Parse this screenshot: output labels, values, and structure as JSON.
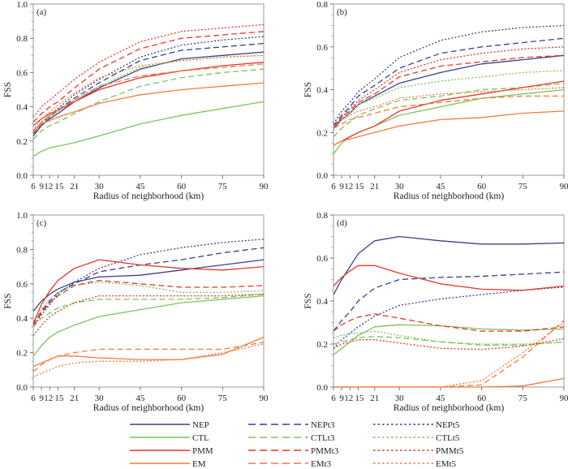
{
  "colors": {
    "NEP": "#3a3f8f",
    "CTL": "#7cc35a",
    "PMM": "#e8372a",
    "EM": "#ef7c3e"
  },
  "legend": {
    "entries": [
      {
        "name": "NEP",
        "color": "NEP",
        "dash": "solid"
      },
      {
        "name": "NEPt3",
        "color": "NEP",
        "dash": "dash"
      },
      {
        "name": "NEPt5",
        "color": "NEP",
        "dash": "dot"
      },
      {
        "name": "CTL",
        "color": "CTL",
        "dash": "solid"
      },
      {
        "name": "CTLt3",
        "color": "CTL",
        "dash": "dash"
      },
      {
        "name": "CTLt5",
        "color": "CTL",
        "dash": "dot"
      },
      {
        "name": "PMM",
        "color": "PMM",
        "dash": "solid"
      },
      {
        "name": "PMMt3",
        "color": "PMM",
        "dash": "dash"
      },
      {
        "name": "PMMt5",
        "color": "PMM",
        "dash": "dot"
      },
      {
        "name": "EM",
        "color": "EM",
        "dash": "solid"
      },
      {
        "name": "EMt3",
        "color": "EM",
        "dash": "dash"
      },
      {
        "name": "EMt5",
        "color": "EM",
        "dash": "dot"
      }
    ]
  },
  "chart_data": [
    {
      "type": "line",
      "panel": "(a)",
      "xlabel": "Radius of neighborhood (km)",
      "ylabel": "FSS",
      "x": [
        6,
        9,
        12,
        15,
        21,
        30,
        45,
        60,
        75,
        90
      ],
      "xticks": [
        "6",
        "9",
        "12",
        "15",
        "21",
        "30",
        "45",
        "60",
        "75",
        "90"
      ],
      "ylim": [
        0,
        1.0
      ],
      "yticks": [
        "0.0",
        "0.2",
        "0.4",
        "0.6",
        "0.8",
        "1.0"
      ],
      "series": [
        {
          "name": "NEP",
          "values": [
            0.23,
            0.29,
            0.33,
            0.36,
            0.43,
            0.51,
            0.62,
            0.68,
            0.7,
            0.72
          ]
        },
        {
          "name": "NEPt3",
          "values": [
            0.24,
            0.3,
            0.34,
            0.38,
            0.45,
            0.54,
            0.67,
            0.73,
            0.75,
            0.77
          ]
        },
        {
          "name": "NEPt5",
          "values": [
            0.25,
            0.31,
            0.35,
            0.39,
            0.47,
            0.56,
            0.69,
            0.76,
            0.79,
            0.81
          ]
        },
        {
          "name": "CTL",
          "values": [
            0.11,
            0.14,
            0.16,
            0.17,
            0.19,
            0.23,
            0.3,
            0.35,
            0.39,
            0.43
          ]
        },
        {
          "name": "CTLt3",
          "values": [
            0.21,
            0.26,
            0.29,
            0.31,
            0.36,
            0.43,
            0.52,
            0.57,
            0.6,
            0.62
          ]
        },
        {
          "name": "CTLt5",
          "values": [
            0.24,
            0.3,
            0.34,
            0.37,
            0.44,
            0.52,
            0.63,
            0.67,
            0.69,
            0.7
          ]
        },
        {
          "name": "PMM",
          "values": [
            0.29,
            0.33,
            0.36,
            0.38,
            0.43,
            0.5,
            0.57,
            0.61,
            0.64,
            0.66
          ]
        },
        {
          "name": "PMMt3",
          "values": [
            0.31,
            0.36,
            0.4,
            0.43,
            0.51,
            0.62,
            0.74,
            0.8,
            0.82,
            0.84
          ]
        },
        {
          "name": "PMMt5",
          "values": [
            0.34,
            0.4,
            0.44,
            0.48,
            0.56,
            0.66,
            0.78,
            0.84,
            0.86,
            0.88
          ]
        },
        {
          "name": "EM",
          "values": [
            0.26,
            0.3,
            0.32,
            0.34,
            0.37,
            0.42,
            0.47,
            0.5,
            0.52,
            0.54
          ]
        },
        {
          "name": "EMt3",
          "values": [
            0.25,
            0.31,
            0.35,
            0.38,
            0.44,
            0.52,
            0.58,
            0.61,
            0.63,
            0.65
          ]
        },
        {
          "name": "EMt5",
          "values": [
            0.26,
            0.33,
            0.37,
            0.41,
            0.48,
            0.57,
            0.64,
            0.67,
            0.69,
            0.7
          ]
        }
      ]
    },
    {
      "type": "line",
      "panel": "(b)",
      "xlabel": "Radius of neighborhood (km)",
      "ylabel": "FSS",
      "x": [
        6,
        9,
        12,
        15,
        21,
        30,
        45,
        60,
        75,
        90
      ],
      "xticks": [
        "6",
        "9",
        "12",
        "15",
        "21",
        "30",
        "45",
        "60",
        "75",
        "90"
      ],
      "ylim": [
        0,
        0.8
      ],
      "yticks": [
        "0.0",
        "0.2",
        "0.4",
        "0.6",
        "0.8"
      ],
      "series": [
        {
          "name": "NEP",
          "values": [
            0.22,
            0.26,
            0.29,
            0.33,
            0.37,
            0.43,
            0.48,
            0.52,
            0.54,
            0.56
          ]
        },
        {
          "name": "NEPt3",
          "values": [
            0.23,
            0.28,
            0.32,
            0.37,
            0.42,
            0.5,
            0.57,
            0.6,
            0.62,
            0.64
          ]
        },
        {
          "name": "NEPt5",
          "values": [
            0.24,
            0.3,
            0.34,
            0.39,
            0.45,
            0.55,
            0.63,
            0.67,
            0.69,
            0.7
          ]
        },
        {
          "name": "CTL",
          "values": [
            0.1,
            0.15,
            0.18,
            0.2,
            0.23,
            0.28,
            0.32,
            0.36,
            0.38,
            0.4
          ]
        },
        {
          "name": "CTLt3",
          "values": [
            0.18,
            0.22,
            0.25,
            0.28,
            0.31,
            0.35,
            0.37,
            0.4,
            0.41,
            0.43
          ]
        },
        {
          "name": "CTLt5",
          "values": [
            0.21,
            0.26,
            0.29,
            0.33,
            0.36,
            0.41,
            0.44,
            0.46,
            0.48,
            0.49
          ]
        },
        {
          "name": "PMM",
          "values": [
            0.14,
            0.16,
            0.18,
            0.2,
            0.23,
            0.3,
            0.35,
            0.38,
            0.41,
            0.44
          ]
        },
        {
          "name": "PMMt3",
          "values": [
            0.22,
            0.27,
            0.3,
            0.34,
            0.38,
            0.46,
            0.51,
            0.53,
            0.55,
            0.56
          ]
        },
        {
          "name": "PMMt5",
          "values": [
            0.22,
            0.27,
            0.31,
            0.35,
            0.4,
            0.48,
            0.54,
            0.57,
            0.59,
            0.6
          ]
        },
        {
          "name": "EM",
          "values": [
            0.14,
            0.16,
            0.17,
            0.18,
            0.2,
            0.23,
            0.26,
            0.27,
            0.29,
            0.3
          ]
        },
        {
          "name": "EMt3",
          "values": [
            0.22,
            0.24,
            0.26,
            0.27,
            0.29,
            0.32,
            0.34,
            0.36,
            0.37,
            0.37
          ]
        },
        {
          "name": "EMt5",
          "values": [
            0.23,
            0.26,
            0.28,
            0.3,
            0.32,
            0.36,
            0.38,
            0.39,
            0.4,
            0.41
          ]
        }
      ]
    },
    {
      "type": "line",
      "panel": "(c)",
      "xlabel": "Radius of neighborhood (km)",
      "ylabel": "FSS",
      "x": [
        6,
        9,
        12,
        15,
        21,
        30,
        45,
        60,
        75,
        90
      ],
      "xticks": [
        "6",
        "9",
        "12",
        "15",
        "21",
        "30",
        "45",
        "60",
        "75",
        "90"
      ],
      "ylim": [
        0,
        1.0
      ],
      "yticks": [
        "0.0",
        "0.2",
        "0.4",
        "0.6",
        "0.8",
        "1.0"
      ],
      "series": [
        {
          "name": "NEP",
          "values": [
            0.44,
            0.5,
            0.54,
            0.57,
            0.61,
            0.64,
            0.65,
            0.68,
            0.71,
            0.74
          ]
        },
        {
          "name": "NEPt3",
          "values": [
            0.36,
            0.44,
            0.5,
            0.55,
            0.6,
            0.67,
            0.71,
            0.74,
            0.78,
            0.81
          ]
        },
        {
          "name": "NEPt5",
          "values": [
            0.35,
            0.42,
            0.48,
            0.54,
            0.61,
            0.69,
            0.77,
            0.81,
            0.84,
            0.86
          ]
        },
        {
          "name": "CTL",
          "values": [
            0.18,
            0.24,
            0.29,
            0.32,
            0.36,
            0.41,
            0.45,
            0.49,
            0.51,
            0.53
          ]
        },
        {
          "name": "CTLt3",
          "values": [
            0.35,
            0.4,
            0.43,
            0.46,
            0.49,
            0.51,
            0.51,
            0.51,
            0.52,
            0.54
          ]
        },
        {
          "name": "CTLt5",
          "values": [
            0.37,
            0.45,
            0.51,
            0.55,
            0.59,
            0.61,
            0.59,
            0.55,
            0.55,
            0.56
          ]
        },
        {
          "name": "PMM",
          "values": [
            0.37,
            0.48,
            0.56,
            0.62,
            0.69,
            0.74,
            0.71,
            0.69,
            0.68,
            0.7
          ]
        },
        {
          "name": "PMMt3",
          "values": [
            0.36,
            0.43,
            0.49,
            0.53,
            0.59,
            0.62,
            0.6,
            0.58,
            0.58,
            0.59
          ]
        },
        {
          "name": "PMMt5",
          "values": [
            0.3,
            0.36,
            0.41,
            0.44,
            0.49,
            0.53,
            0.53,
            0.53,
            0.53,
            0.54
          ]
        },
        {
          "name": "EM",
          "values": [
            0.12,
            0.14,
            0.16,
            0.18,
            0.18,
            0.17,
            0.16,
            0.16,
            0.19,
            0.29
          ]
        },
        {
          "name": "EMt3",
          "values": [
            0.09,
            0.13,
            0.16,
            0.18,
            0.2,
            0.22,
            0.22,
            0.22,
            0.22,
            0.26
          ]
        },
        {
          "name": "EMt5",
          "values": [
            0.06,
            0.08,
            0.1,
            0.12,
            0.14,
            0.15,
            0.15,
            0.16,
            0.2,
            0.25
          ]
        }
      ]
    },
    {
      "type": "line",
      "panel": "(d)",
      "xlabel": "Radius of neighborhood (km)",
      "ylabel": "FSS",
      "x": [
        6,
        9,
        12,
        15,
        21,
        30,
        45,
        60,
        75,
        90
      ],
      "xticks": [
        "6",
        "9",
        "12",
        "15",
        "21",
        "30",
        "45",
        "60",
        "75",
        "90"
      ],
      "ylim": [
        0,
        0.8
      ],
      "yticks": [
        "0.0",
        "0.2",
        "0.4",
        "0.6",
        "0.8"
      ],
      "series": [
        {
          "name": "NEP",
          "values": [
            0.43,
            0.5,
            0.56,
            0.62,
            0.68,
            0.7,
            0.68,
            0.665,
            0.665,
            0.67
          ]
        },
        {
          "name": "NEPt3",
          "values": [
            0.26,
            0.31,
            0.35,
            0.4,
            0.46,
            0.5,
            0.51,
            0.515,
            0.525,
            0.535
          ]
        },
        {
          "name": "NEPt5",
          "values": [
            0.18,
            0.22,
            0.25,
            0.28,
            0.33,
            0.38,
            0.41,
            0.43,
            0.45,
            0.465
          ]
        },
        {
          "name": "CTL",
          "values": [
            0.15,
            0.18,
            0.21,
            0.24,
            0.28,
            0.29,
            0.285,
            0.27,
            0.265,
            0.27
          ]
        },
        {
          "name": "CTLt3",
          "values": [
            0.2,
            0.21,
            0.22,
            0.23,
            0.235,
            0.23,
            0.21,
            0.195,
            0.195,
            0.21
          ]
        },
        {
          "name": "CTLt5",
          "values": [
            0.23,
            0.24,
            0.25,
            0.25,
            0.26,
            0.24,
            0.21,
            0.2,
            0.2,
            0.21
          ]
        },
        {
          "name": "PMM",
          "values": [
            0.47,
            0.51,
            0.54,
            0.565,
            0.565,
            0.53,
            0.48,
            0.455,
            0.45,
            0.47
          ]
        },
        {
          "name": "PMMt3",
          "values": [
            0.26,
            0.29,
            0.31,
            0.325,
            0.34,
            0.32,
            0.285,
            0.26,
            0.26,
            0.28
          ]
        },
        {
          "name": "PMMt5",
          "values": [
            0.18,
            0.2,
            0.21,
            0.22,
            0.22,
            0.205,
            0.18,
            0.175,
            0.19,
            0.225
          ]
        },
        {
          "name": "EM",
          "values": [
            0,
            0,
            0,
            0,
            0,
            0,
            0,
            0,
            0.005,
            0.04
          ]
        },
        {
          "name": "EMt3",
          "values": [
            0,
            0,
            0,
            0,
            0,
            0,
            0,
            0.01,
            0.14,
            0.31
          ]
        },
        {
          "name": "EMt5",
          "values": [
            0,
            0,
            0,
            0,
            0,
            0,
            0,
            0.03,
            0.16,
            0.3
          ]
        }
      ]
    }
  ]
}
